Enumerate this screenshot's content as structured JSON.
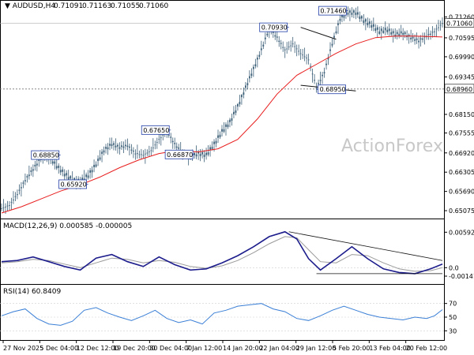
{
  "header": {
    "symbol": "AUDUSD,H4",
    "ohlc": [
      "0.71091",
      "0.71163",
      "0.71055",
      "0.71060"
    ],
    "macd_label": "MACD(12,26,9) 0.000585 -0.000005",
    "rsi_label": "RSI(14) 60.8409"
  },
  "watermark": "ActionForex",
  "colors": {
    "candle": "#3c5f78",
    "ma": "#e81d1d",
    "macd_line": "#1c1c8c",
    "macd_signal": "#9a9a9a",
    "rsi": "#3a7fd6",
    "trendline": "#111111",
    "level_line": "#777777",
    "label_border": "#1f3da6"
  },
  "chart_data": [
    {
      "type": "line",
      "name": "price",
      "ylim": [
        0.6495,
        0.7145
      ],
      "y_ticks": [
        "0.71260",
        "0.70595",
        "0.69990",
        "0.69345",
        "0.68150",
        "0.67555",
        "0.66920",
        "0.66305",
        "0.65690",
        "0.65075"
      ],
      "current_price": "0.71060",
      "level_line": "0.68960",
      "x_labels": [
        "27 Nov 2025",
        "5 Dec 04:00",
        "12 Dec 12:00",
        "19 Dec 20:00",
        "30 Dec 04:00",
        "7 Jan 12:00",
        "14 Jan 20:00",
        "22 Jan 04:00",
        "29 Jan 12:00",
        "5 Feb 20:00",
        "13 Feb 04:00",
        "20 Feb 12:00"
      ],
      "callouts": [
        "0.68850",
        "0.65920",
        "0.67650",
        "0.66870",
        "0.70930",
        "0.68950",
        "0.71460"
      ],
      "close_path": [
        [
          0,
          0.6515
        ],
        [
          4,
          0.6525
        ],
        [
          8,
          0.656
        ],
        [
          12,
          0.6605
        ],
        [
          16,
          0.664
        ],
        [
          20,
          0.6675
        ],
        [
          24,
          0.668
        ],
        [
          28,
          0.665
        ],
        [
          32,
          0.6625
        ],
        [
          36,
          0.6605
        ],
        [
          40,
          0.66
        ],
        [
          44,
          0.662
        ],
        [
          48,
          0.6655
        ],
        [
          52,
          0.67
        ],
        [
          56,
          0.672
        ],
        [
          60,
          0.671
        ],
        [
          64,
          0.6715
        ],
        [
          68,
          0.669
        ],
        [
          72,
          0.6685
        ],
        [
          76,
          0.67
        ],
        [
          80,
          0.6735
        ],
        [
          84,
          0.676
        ],
        [
          88,
          0.672
        ],
        [
          92,
          0.669
        ],
        [
          96,
          0.668
        ],
        [
          100,
          0.669
        ],
        [
          104,
          0.6685
        ],
        [
          108,
          0.672
        ],
        [
          112,
          0.676
        ],
        [
          116,
          0.679
        ],
        [
          120,
          0.684
        ],
        [
          124,
          0.69
        ],
        [
          128,
          0.696
        ],
        [
          132,
          0.702
        ],
        [
          136,
          0.709
        ],
        [
          140,
          0.706
        ],
        [
          144,
          0.702
        ],
        [
          148,
          0.704
        ],
        [
          152,
          0.701
        ],
        [
          156,
          0.699
        ],
        [
          160,
          0.69
        ],
        [
          164,
          0.695
        ],
        [
          168,
          0.704
        ],
        [
          172,
          0.712
        ],
        [
          176,
          0.714
        ],
        [
          180,
          0.714
        ],
        [
          184,
          0.7115
        ],
        [
          188,
          0.71
        ],
        [
          192,
          0.708
        ],
        [
          196,
          0.7085
        ],
        [
          200,
          0.707
        ],
        [
          204,
          0.7075
        ],
        [
          208,
          0.706
        ],
        [
          212,
          0.705
        ],
        [
          216,
          0.7065
        ],
        [
          220,
          0.708
        ],
        [
          224,
          0.7106
        ]
      ],
      "ma_path": [
        [
          0,
          0.65
        ],
        [
          10,
          0.652
        ],
        [
          20,
          0.6545
        ],
        [
          30,
          0.657
        ],
        [
          40,
          0.659
        ],
        [
          50,
          0.6615
        ],
        [
          60,
          0.6645
        ],
        [
          70,
          0.667
        ],
        [
          80,
          0.669
        ],
        [
          90,
          0.67
        ],
        [
          100,
          0.6695
        ],
        [
          110,
          0.6705
        ],
        [
          120,
          0.6735
        ],
        [
          130,
          0.68
        ],
        [
          140,
          0.688
        ],
        [
          150,
          0.694
        ],
        [
          160,
          0.6975
        ],
        [
          170,
          0.701
        ],
        [
          180,
          0.704
        ],
        [
          190,
          0.706
        ],
        [
          200,
          0.7065
        ],
        [
          210,
          0.7065
        ],
        [
          220,
          0.7063
        ],
        [
          224,
          0.7062
        ]
      ],
      "trendlines": [
        [
          [
            152,
            0.7093
          ],
          [
            170,
            0.7055
          ]
        ],
        [
          [
            152,
            0.6908
          ],
          [
            180,
            0.689
          ]
        ]
      ]
    },
    {
      "type": "line",
      "name": "MACD",
      "ylim": [
        -0.0022,
        0.0065
      ],
      "y_ticks": [
        "0.005928",
        "0.0",
        "-0.001412"
      ],
      "macd_path": [
        [
          0,
          0.001
        ],
        [
          8,
          0.0012
        ],
        [
          16,
          0.0018
        ],
        [
          24,
          0.001
        ],
        [
          32,
          0.0002
        ],
        [
          40,
          -0.0004
        ],
        [
          48,
          0.0016
        ],
        [
          56,
          0.0022
        ],
        [
          64,
          0.001
        ],
        [
          72,
          0.0002
        ],
        [
          80,
          0.0018
        ],
        [
          88,
          0.0005
        ],
        [
          96,
          -0.0004
        ],
        [
          104,
          -0.0002
        ],
        [
          112,
          0.0008
        ],
        [
          120,
          0.002
        ],
        [
          128,
          0.0035
        ],
        [
          136,
          0.0052
        ],
        [
          144,
          0.006
        ],
        [
          150,
          0.0048
        ],
        [
          156,
          0.0015
        ],
        [
          162,
          -0.0004
        ],
        [
          170,
          0.0015
        ],
        [
          178,
          0.0035
        ],
        [
          186,
          0.0015
        ],
        [
          194,
          -0.0002
        ],
        [
          202,
          -0.0008
        ],
        [
          210,
          -0.001
        ],
        [
          218,
          -0.0002
        ],
        [
          224,
          0.0006
        ]
      ],
      "signal_path": [
        [
          0,
          0.0008
        ],
        [
          8,
          0.001
        ],
        [
          16,
          0.0014
        ],
        [
          24,
          0.0012
        ],
        [
          32,
          0.0006
        ],
        [
          40,
          0.0
        ],
        [
          48,
          0.0008
        ],
        [
          56,
          0.0016
        ],
        [
          64,
          0.0014
        ],
        [
          72,
          0.0008
        ],
        [
          80,
          0.0012
        ],
        [
          88,
          0.0009
        ],
        [
          96,
          0.0002
        ],
        [
          104,
          -0.0001
        ],
        [
          112,
          0.0003
        ],
        [
          120,
          0.0012
        ],
        [
          128,
          0.0025
        ],
        [
          136,
          0.004
        ],
        [
          144,
          0.0052
        ],
        [
          150,
          0.005
        ],
        [
          156,
          0.003
        ],
        [
          162,
          0.001
        ],
        [
          170,
          0.0008
        ],
        [
          178,
          0.0022
        ],
        [
          186,
          0.002
        ],
        [
          194,
          0.0008
        ],
        [
          202,
          -0.0002
        ],
        [
          210,
          -0.0006
        ],
        [
          218,
          -0.0005
        ],
        [
          224,
          0.0
        ]
      ],
      "trendlines": [
        [
          [
            146,
            0.006
          ],
          [
            224,
            0.0012
          ]
        ],
        [
          [
            160,
            -0.001
          ],
          [
            224,
            -0.001
          ]
        ]
      ]
    },
    {
      "type": "line",
      "name": "RSI",
      "ylim": [
        20,
        80
      ],
      "y_ticks": [
        "70",
        "50",
        "30"
      ],
      "rsi_path": [
        [
          0,
          52
        ],
        [
          6,
          58
        ],
        [
          12,
          62
        ],
        [
          18,
          48
        ],
        [
          24,
          40
        ],
        [
          30,
          38
        ],
        [
          36,
          44
        ],
        [
          42,
          60
        ],
        [
          48,
          64
        ],
        [
          54,
          56
        ],
        [
          60,
          50
        ],
        [
          66,
          45
        ],
        [
          72,
          52
        ],
        [
          78,
          60
        ],
        [
          84,
          48
        ],
        [
          90,
          42
        ],
        [
          96,
          46
        ],
        [
          102,
          40
        ],
        [
          108,
          56
        ],
        [
          114,
          60
        ],
        [
          120,
          66
        ],
        [
          126,
          68
        ],
        [
          132,
          70
        ],
        [
          138,
          62
        ],
        [
          144,
          58
        ],
        [
          150,
          48
        ],
        [
          156,
          45
        ],
        [
          162,
          52
        ],
        [
          168,
          60
        ],
        [
          174,
          66
        ],
        [
          180,
          60
        ],
        [
          186,
          54
        ],
        [
          192,
          50
        ],
        [
          198,
          48
        ],
        [
          204,
          46
        ],
        [
          210,
          50
        ],
        [
          216,
          48
        ],
        [
          220,
          52
        ],
        [
          224,
          61
        ]
      ]
    }
  ]
}
